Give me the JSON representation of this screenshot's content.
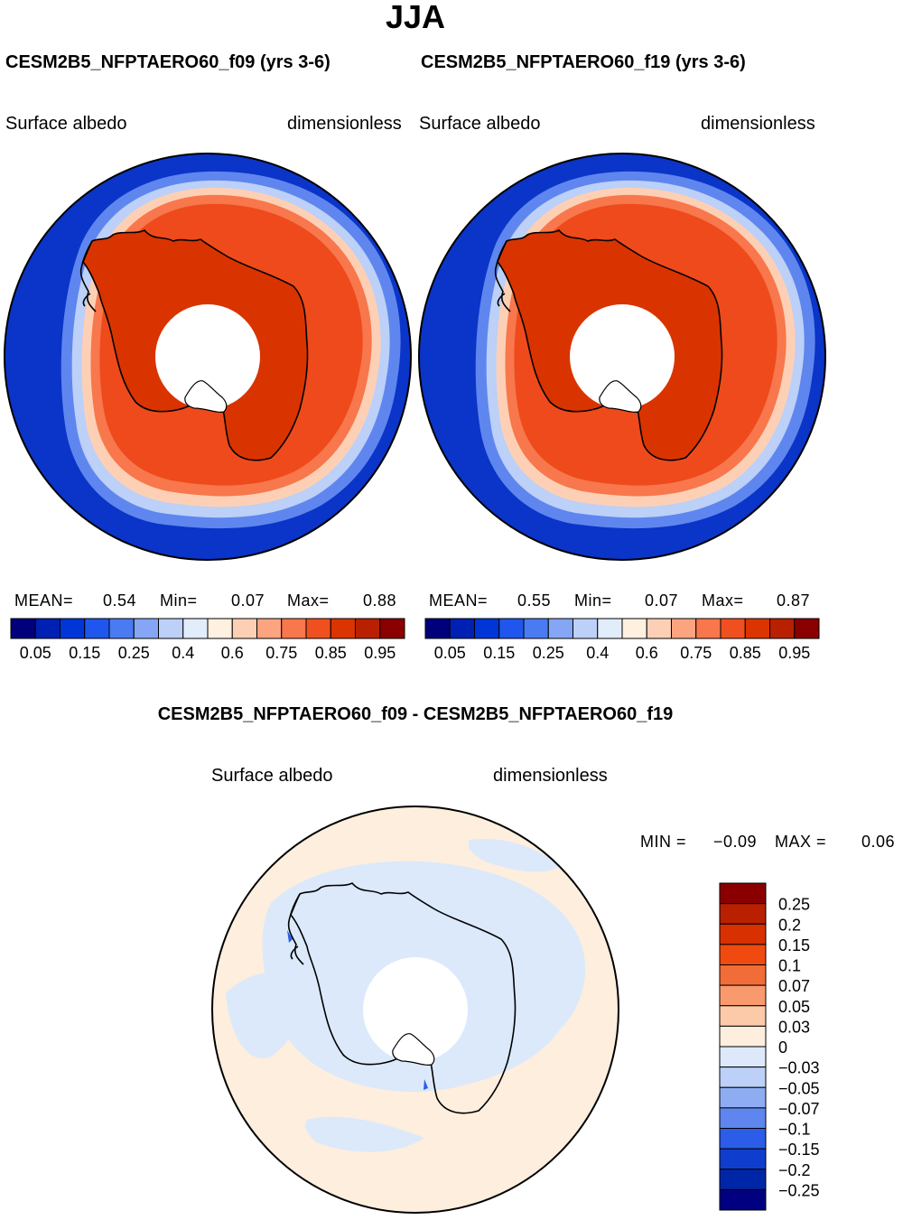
{
  "title": "JJA",
  "colors": {
    "abs_scale": [
      "#00007a",
      "#0020b4",
      "#0035d8",
      "#1f56ee",
      "#4a7bf2",
      "#84a6f5",
      "#bcd0f8",
      "#e1edfb",
      "#fff0e0",
      "#fdd0b5",
      "#fba47f",
      "#f8774c",
      "#f0501f",
      "#db3400",
      "#b82000",
      "#8a0000"
    ],
    "diff_scale": [
      "#8a0000",
      "#b82000",
      "#d83000",
      "#f04a10",
      "#f26c38",
      "#f89a6e",
      "#fccaa8",
      "#fdeedd",
      "#dde9fa",
      "#bcd0f8",
      "#8eacf2",
      "#5f86ee",
      "#2b5de8",
      "#0f3ecf",
      "#0026a8",
      "#000080"
    ],
    "ocean": "#0a35c8",
    "ice": "#ee4a1c",
    "land": "#d93400",
    "diff_background": "#fdeedd",
    "diff_light": "#dbe9fb"
  },
  "panels": [
    {
      "title": "CESM2B5_NFPTAERO60_f09 (yrs 3-6)",
      "left_label": "Surface albedo",
      "right_label": "dimensionless",
      "mean_label": "MEAN=",
      "mean": "0.54",
      "min_label": "Min=",
      "min": "0.07",
      "max_label": "Max=",
      "max": "0.88",
      "ticks": [
        "0.05",
        "0.15",
        "0.25",
        "0.4",
        "0.6",
        "0.75",
        "0.85",
        "0.95"
      ]
    },
    {
      "title": "CESM2B5_NFPTAERO60_f19 (yrs 3-6)",
      "left_label": "Surface albedo",
      "right_label": "dimensionless",
      "mean_label": "MEAN=",
      "mean": "0.55",
      "min_label": "Min=",
      "min": "0.07",
      "max_label": "Max=",
      "max": "0.87",
      "ticks": [
        "0.05",
        "0.15",
        "0.25",
        "0.4",
        "0.6",
        "0.75",
        "0.85",
        "0.95"
      ]
    }
  ],
  "diff": {
    "title": "CESM2B5_NFPTAERO60_f09 - CESM2B5_NFPTAERO60_f19",
    "left_label": "Surface albedo",
    "right_label": "dimensionless",
    "min_label": "MIN =",
    "min": "−0.09",
    "max_label": "MAX =",
    "max": "0.06",
    "ticks": [
      "0.25",
      "0.2",
      "0.15",
      "0.1",
      "0.07",
      "0.05",
      "0.03",
      "0",
      "−0.03",
      "−0.05",
      "−0.07",
      "−0.1",
      "−0.15",
      "−0.2",
      "−0.25"
    ]
  }
}
